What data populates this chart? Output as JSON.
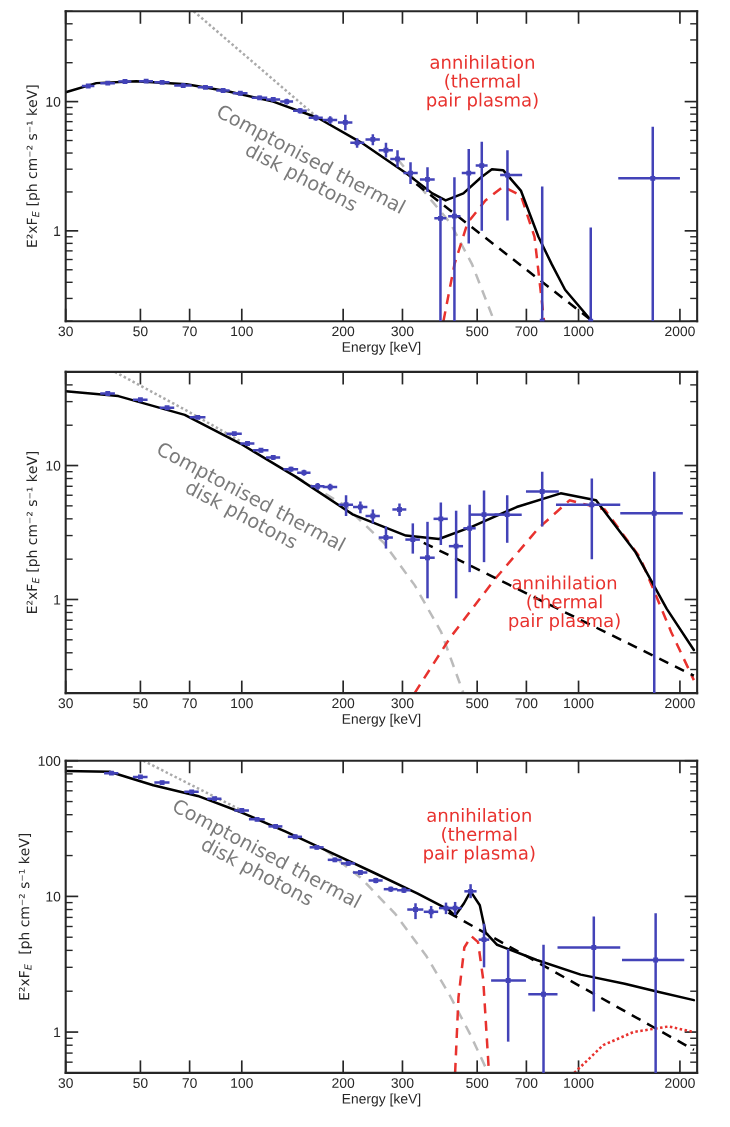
{
  "chart_data": [
    {
      "type": "line",
      "xlabel": "Energy [keV]",
      "ylabel": "E²xF$_{E}$ [ph cm⁻² s⁻¹ keV]",
      "log": "xy",
      "xlim": [
        30,
        2250
      ],
      "ylim": [
        0.2,
        50
      ],
      "xticks": [
        30,
        50,
        70,
        100,
        200,
        300,
        500,
        700,
        1000,
        2000
      ],
      "yticks": [
        {
          "value": 0.2,
          "label": null
        },
        {
          "value": 0.3,
          "label": null
        },
        {
          "value": 0.4,
          "label": null
        },
        {
          "value": 0.5,
          "label": null
        },
        {
          "value": 0.6,
          "label": null
        },
        {
          "value": 0.7,
          "label": null
        },
        {
          "value": 0.8,
          "label": null
        },
        {
          "value": 0.9,
          "label": null
        },
        1,
        {
          "value": 2,
          "label": null
        },
        {
          "value": 3,
          "label": null
        },
        {
          "value": 4,
          "label": null
        },
        {
          "value": 5,
          "label": null
        },
        {
          "value": 6,
          "label": null
        },
        {
          "value": 7,
          "label": null
        },
        {
          "value": 8,
          "label": null
        },
        {
          "value": 9,
          "label": null
        },
        10,
        {
          "value": 20,
          "label": null
        },
        {
          "value": 30,
          "label": null
        },
        {
          "value": 40,
          "label": null
        },
        {
          "value": 50,
          "label": null
        }
      ],
      "annotations": [
        "Comptonised thermal\ndisk photons",
        "annihilation\n(thermal\npair plasma)"
      ],
      "series": [
        {
          "type": "scatter",
          "color": "#4343b8",
          "x": [
            35,
            40,
            45,
            52,
            58,
            67,
            78,
            88,
            99,
            113,
            124,
            136,
            149,
            166,
            183,
            203,
            220,
            245,
            268,
            290,
            317,
            356,
            389,
            428,
            472,
            516,
            615,
            780,
            1087,
            1661
          ],
          "values": [
            13.2,
            13.9,
            14.3,
            14.4,
            14.1,
            13.3,
            12.9,
            12.2,
            11.6,
            10.7,
            10.4,
            10,
            8.5,
            7.5,
            7.2,
            6.9,
            4.8,
            5.1,
            4.2,
            3.6,
            2.8,
            2.5,
            1.25,
            1.3,
            2.8,
            3.2,
            2.7,
            0.2,
            0.2,
            2.55
          ],
          "errors": [
            [
              12.9,
              13.5
            ],
            [
              13.6,
              14.2
            ],
            [
              14,
              14.6
            ],
            [
              14.1,
              14.7
            ],
            [
              13.8,
              14.4
            ],
            [
              12.8,
              13.8
            ],
            [
              12.5,
              13.3
            ],
            [
              11.8,
              12.6
            ],
            [
              11.2,
              12
            ],
            [
              10.3,
              11.1
            ],
            [
              10,
              10.8
            ],
            [
              9.5,
              10.5
            ],
            [
              8.1,
              8.9
            ],
            [
              7.1,
              7.9
            ],
            [
              6.7,
              7.7
            ],
            [
              6,
              7.9
            ],
            [
              4.4,
              5.2
            ],
            [
              4.6,
              5.6
            ],
            [
              3.7,
              4.8
            ],
            [
              3.1,
              4.2
            ],
            [
              2.3,
              3.4
            ],
            [
              2,
              3.1
            ],
            [
              0.2,
              1.8
            ],
            [
              0.2,
              2.6
            ],
            [
              0.8,
              4.3
            ],
            [
              1,
              4.9
            ],
            [
              1.2,
              4.2
            ],
            [
              0.2,
              2.2
            ],
            [
              0.2,
              1.06
            ],
            [
              0.2,
              6.4
            ]
          ],
          "xerrors": [
            [
              33.5,
              36.5
            ],
            [
              38,
              42
            ],
            [
              43,
              47
            ],
            [
              49.5,
              54.5
            ],
            [
              55,
              61
            ],
            [
              63,
              71
            ],
            [
              74,
              82
            ],
            [
              84,
              92
            ],
            [
              94,
              104
            ],
            [
              107,
              119
            ],
            [
              118,
              130
            ],
            [
              130,
              142
            ],
            [
              142,
              156
            ],
            [
              158,
              174
            ],
            [
              174,
              192
            ],
            [
              193,
              213
            ],
            [
              210,
              231
            ],
            [
              233,
              257
            ],
            [
              255,
              281
            ],
            [
              276,
              305
            ],
            [
              302,
              333
            ],
            [
              338,
              374
            ],
            [
              373,
              405
            ],
            [
              410,
              446
            ],
            [
              450,
              494
            ],
            [
              495,
              537
            ],
            [
              585,
              680
            ],
            null,
            null,
            [
              1312,
              2000
            ]
          ]
        },
        {
          "type": "line",
          "color": "#aaaaaa",
          "line_style": "dotted",
          "x": [
            72,
            168
          ],
          "values": [
            50,
            7.5
          ]
        },
        {
          "type": "line",
          "color": "#bbbbbb",
          "line_style": "dashed",
          "x": [
            290,
            356,
            416,
            483,
            562
          ],
          "values": [
            3.6,
            1.87,
            1.15,
            0.55,
            0.2
          ]
        },
        {
          "type": "line",
          "color": "#e8322e",
          "line_style": "dashed",
          "x": [
            397,
            428,
            468,
            529,
            597,
            674,
            740,
            790
          ],
          "values": [
            0.2,
            0.55,
            1.15,
            1.72,
            2.2,
            1.88,
            0.9,
            0.2
          ]
        },
        {
          "type": "line",
          "color": "#000000",
          "line_style": "dashed",
          "x": [
            330,
            1100
          ],
          "values": [
            2.3,
            0.2
          ]
        },
        {
          "color": "#000000",
          "line_style": "solid",
          "x": [
            30,
            37,
            48.6,
            68.5,
            91.5,
            124,
            168,
            227,
            307,
            368,
            403,
            455,
            514,
            553,
            597,
            674,
            760,
            833,
            912,
            1095
          ],
          "values": [
            11.8,
            13.9,
            14.4,
            13.6,
            11.97,
            10,
            7.5,
            4.8,
            2.8,
            1.95,
            1.72,
            1.95,
            2.6,
            3.0,
            2.95,
            2.05,
            0.9,
            0.55,
            0.35,
            0.2
          ]
        }
      ]
    },
    {
      "type": "line",
      "xlabel": "Energy [keV]",
      "ylabel": "E²xF$_{E}$ [ph cm⁻² s⁻¹ keV]",
      "log": "xy",
      "xlim": [
        30,
        2250
      ],
      "ylim": [
        0.2,
        50
      ],
      "xticks": [
        30,
        50,
        70,
        100,
        200,
        300,
        500,
        700,
        1000,
        2000
      ],
      "yticks": [
        {
          "value": 0.2,
          "label": null
        },
        {
          "value": 0.3,
          "label": null
        },
        {
          "value": 0.4,
          "label": null
        },
        {
          "value": 0.5,
          "label": null
        },
        {
          "value": 0.6,
          "label": null
        },
        {
          "value": 0.7,
          "label": null
        },
        {
          "value": 0.8,
          "label": null
        },
        {
          "value": 0.9,
          "label": null
        },
        1,
        {
          "value": 2,
          "label": null
        },
        {
          "value": 3,
          "label": null
        },
        {
          "value": 4,
          "label": null
        },
        {
          "value": 5,
          "label": null
        },
        {
          "value": 6,
          "label": null
        },
        {
          "value": 7,
          "label": null
        },
        {
          "value": 8,
          "label": null
        },
        {
          "value": 9,
          "label": null
        },
        10,
        {
          "value": 20,
          "label": null
        },
        {
          "value": 30,
          "label": null
        },
        {
          "value": 40,
          "label": null
        },
        {
          "value": 50,
          "label": null
        }
      ],
      "annotations": [
        "Comptonised thermal\ndisk photons",
        "annihilation\n(thermal\npair plasma)"
      ],
      "series": [
        {
          "type": "scatter",
          "color": "#4343b8",
          "x": [
            40,
            50,
            60,
            74,
            95,
            104,
            114,
            124,
            140,
            153,
            168,
            183,
            204,
            225,
            245,
            268,
            294,
            322,
            356,
            390,
            433,
            475,
            524,
            614,
            780,
            1095,
            1678
          ],
          "values": [
            34.5,
            31,
            27,
            22.9,
            17.3,
            14.6,
            13,
            11.5,
            9.4,
            8.85,
            7,
            6.9,
            5.1,
            4.9,
            4.2,
            2.9,
            4.7,
            2.8,
            2.05,
            4,
            2.5,
            3.4,
            4.3,
            4.3,
            6.4,
            5.1,
            4.4
          ],
          "errors": [
            [
              33.8,
              35.2
            ],
            [
              30.3,
              31.7
            ],
            [
              26.4,
              27.6
            ],
            [
              22.3,
              23.5
            ],
            [
              16.8,
              17.8
            ],
            [
              14.1,
              15.1
            ],
            [
              12.5,
              13.5
            ],
            [
              11,
              12
            ],
            [
              9,
              9.8
            ],
            [
              8.4,
              9.3
            ],
            [
              6.6,
              7.4
            ],
            [
              6.5,
              7.3
            ],
            [
              4.2,
              6
            ],
            [
              4.4,
              5.4
            ],
            [
              3.7,
              4.7
            ],
            [
              2.4,
              3.5
            ],
            [
              4.2,
              5.2
            ],
            [
              2.2,
              3.7
            ],
            [
              1.02,
              3.8
            ],
            [
              2.55,
              5.3
            ],
            [
              1.02,
              4.6
            ],
            [
              1.6,
              5.1
            ],
            [
              1.9,
              6.5
            ],
            [
              2.65,
              6
            ],
            [
              3.5,
              9
            ],
            [
              2,
              8
            ],
            [
              0.2,
              9
            ]
          ],
          "xerrors": [
            [
              38,
              42
            ],
            [
              47.5,
              52.5
            ],
            [
              57,
              63
            ],
            [
              70,
              78
            ],
            [
              90,
              100
            ],
            [
              99,
              109
            ],
            [
              108,
              120
            ],
            [
              118,
              130
            ],
            [
              133,
              147
            ],
            [
              146,
              160
            ],
            [
              160,
              176
            ],
            [
              174,
              192
            ],
            [
              194,
              214
            ],
            [
              214,
              236
            ],
            [
              233,
              257
            ],
            [
              255,
              281
            ],
            [
              280,
              308
            ],
            [
              306,
              338
            ],
            [
              338,
              374
            ],
            [
              371,
              409
            ],
            [
              412,
              454
            ],
            [
              455,
              495
            ],
            [
              475,
              578
            ],
            [
              563,
              678
            ],
            [
              698,
              874
            ],
            [
              857,
              1330
            ],
            [
              1330,
              2040
            ]
          ]
        },
        {
          "type": "line",
          "color": "#aaaaaa",
          "line_style": "dotted",
          "x": [
            42,
            68,
            100
          ],
          "values": [
            50,
            26,
            15
          ]
        },
        {
          "type": "line",
          "color": "#bbbbbb",
          "line_style": "dashed",
          "x": [
            144,
            201,
            264,
            326,
            391,
            455
          ],
          "values": [
            8.3,
            5.1,
            2.65,
            1.28,
            0.57,
            0.2
          ]
        },
        {
          "type": "line",
          "color": "#e8322e",
          "line_style": "dashed",
          "x": [
            326,
            416,
            562,
            760,
            940,
            1196,
            1524,
            1885,
            2200
          ],
          "values": [
            0.2,
            0.52,
            1.4,
            3.4,
            5.5,
            4.7,
            2.05,
            0.57,
            0.25
          ]
        },
        {
          "type": "line",
          "color": "#000000",
          "line_style": "dashed",
          "x": [
            347,
            2200
          ],
          "values": [
            2.65,
            0.27
          ]
        },
        {
          "color": "#000000",
          "line_style": "solid",
          "x": [
            30,
            43,
            67.7,
            99,
            144,
            214,
            307,
            385,
            483,
            655,
            885,
            1127,
            1477,
            1828,
            2200
          ],
          "values": [
            35.9,
            33,
            23.9,
            14.6,
            8.3,
            4.3,
            3.0,
            2.83,
            3.5,
            4.9,
            6.2,
            5.5,
            2.25,
            0.85,
            0.42
          ]
        }
      ]
    },
    {
      "type": "line",
      "xlabel": "Energy [keV]",
      "ylabel": "E²xF$_{E}$  [ph cm⁻² s⁻¹ keV]",
      "log": "xy",
      "xlim": [
        30,
        2250
      ],
      "ylim": [
        0.5,
        100
      ],
      "xticks": [
        30,
        50,
        70,
        100,
        200,
        300,
        500,
        700,
        1000,
        2000
      ],
      "yticks": [
        {
          "value": 0.5,
          "label": null
        },
        {
          "value": 0.6,
          "label": null
        },
        {
          "value": 0.7,
          "label": null
        },
        {
          "value": 0.8,
          "label": null
        },
        {
          "value": 0.9,
          "label": null
        },
        1,
        {
          "value": 2,
          "label": null
        },
        {
          "value": 3,
          "label": null
        },
        {
          "value": 4,
          "label": null
        },
        {
          "value": 5,
          "label": null
        },
        {
          "value": 6,
          "label": null
        },
        {
          "value": 7,
          "label": null
        },
        {
          "value": 8,
          "label": null
        },
        {
          "value": 9,
          "label": null
        },
        10,
        {
          "value": 20,
          "label": null
        },
        {
          "value": 30,
          "label": null
        },
        {
          "value": 40,
          "label": null
        },
        {
          "value": 50,
          "label": null
        },
        {
          "value": 60,
          "label": null
        },
        {
          "value": 70,
          "label": null
        },
        {
          "value": 80,
          "label": null
        },
        {
          "value": 90,
          "label": null
        },
        100
      ],
      "annotations": [
        "Comptonised thermal\ndisk photons",
        "annihilation\n(thermal\npair plasma)"
      ],
      "series": [
        {
          "type": "scatter",
          "color": "#4343b8",
          "x": [
            41,
            50,
            58,
            71,
            83,
            100,
            111,
            126,
            144,
            167,
            189,
            207,
            225,
            250,
            277,
            303,
            328,
            365,
            404,
            430,
            478,
            524,
            618,
            787,
            1110,
            1694
          ],
          "values": [
            81,
            76,
            69,
            59,
            52.5,
            43,
            37,
            32.8,
            27.5,
            23,
            18.6,
            17.5,
            15,
            13.1,
            11.3,
            11.1,
            8,
            7.7,
            8.2,
            8.2,
            10.9,
            4.8,
            2.4,
            1.9,
            4.2,
            3.4
          ],
          "errors": [
            [
              79,
              83
            ],
            [
              74,
              78
            ],
            [
              67,
              71
            ],
            [
              57.5,
              60.5
            ],
            [
              51,
              54
            ],
            [
              41.5,
              44.5
            ],
            [
              35.8,
              38.2
            ],
            [
              31.7,
              33.9
            ],
            [
              26.5,
              28.5
            ],
            [
              22.2,
              23.8
            ],
            [
              17.9,
              19.3
            ],
            [
              16.8,
              18.2
            ],
            [
              14.4,
              15.6
            ],
            [
              12.5,
              13.7
            ],
            [
              10.8,
              11.8
            ],
            [
              10.6,
              11.6
            ],
            [
              6.8,
              8.9
            ],
            [
              6.9,
              8.5
            ],
            [
              7.4,
              9
            ],
            [
              7.3,
              9.1
            ],
            [
              9.7,
              12.3
            ],
            [
              3,
              6.3
            ],
            [
              0.85,
              4.1
            ],
            [
              0.5,
              4.4
            ],
            [
              1.42,
              7.1
            ],
            [
              0.5,
              7.5
            ]
          ],
          "xerrors": [
            [
              39,
              43
            ],
            [
              47.5,
              52.5
            ],
            [
              55,
              61
            ],
            [
              67.5,
              74.5
            ],
            [
              79,
              87
            ],
            [
              95,
              105
            ],
            [
              105,
              117
            ],
            [
              120,
              132
            ],
            [
              137,
              151
            ],
            [
              159,
              175
            ],
            [
              180,
              198
            ],
            [
              197,
              217
            ],
            [
              214,
              236
            ],
            [
              238,
              262
            ],
            [
              264,
              290
            ],
            [
              289,
              317
            ],
            [
              310,
              346
            ],
            [
              347,
              383
            ],
            [
              385,
              423
            ],
            [
              410,
              450
            ],
            [
              458,
              498
            ],
            [
              505,
              543
            ],
            [
              550,
              698
            ],
            [
              709,
              866
            ],
            [
              866,
              1330
            ],
            [
              1346,
              2060
            ]
          ]
        },
        {
          "type": "line",
          "color": "#aaaaaa",
          "line_style": "dotted",
          "x": [
            51,
            100
          ],
          "values": [
            100,
            43
          ]
        },
        {
          "type": "line",
          "color": "#bbbbbb",
          "line_style": "dashed",
          "x": [
            177,
            225,
            286,
            354,
            411,
            478,
            539
          ],
          "values": [
            22,
            13.8,
            7.4,
            3.6,
            1.94,
            0.95,
            0.5
          ]
        },
        {
          "type": "line",
          "color": "#e8322e",
          "line_style": "dashed",
          "x": [
            430,
            440,
            458,
            480,
            503,
            521,
            542
          ],
          "values": [
            0.5,
            1.8,
            4.2,
            5.1,
            4.6,
            2.45,
            0.5
          ]
        },
        {
          "type": "line",
          "color": "#e8322e",
          "line_style": "dotted",
          "x": [
            971,
            1183,
            1455,
            1851,
            2200
          ],
          "values": [
            0.5,
            0.8,
            1.0,
            1.1,
            1.0
          ]
        },
        {
          "type": "line",
          "color": "#000000",
          "line_style": "dashed",
          "x": [
            411,
            2200
          ],
          "values": [
            7.6,
            0.74
          ]
        },
        {
          "color": "#000000",
          "line_style": "solid",
          "x": [
            30,
            40.5,
            54.6,
            74,
            100,
            135,
            182,
            246,
            333,
            411,
            430,
            457,
            478,
            509,
            530,
            573,
            751,
            1015,
            1371,
            1694,
            2200
          ],
          "values": [
            84,
            83,
            66,
            55,
            41.5,
            30,
            21.3,
            15,
            10.5,
            8.0,
            7.2,
            8.9,
            10.9,
            8.6,
            5.4,
            4.4,
            3.4,
            2.65,
            2.27,
            2.0,
            1.72
          ]
        }
      ]
    }
  ]
}
